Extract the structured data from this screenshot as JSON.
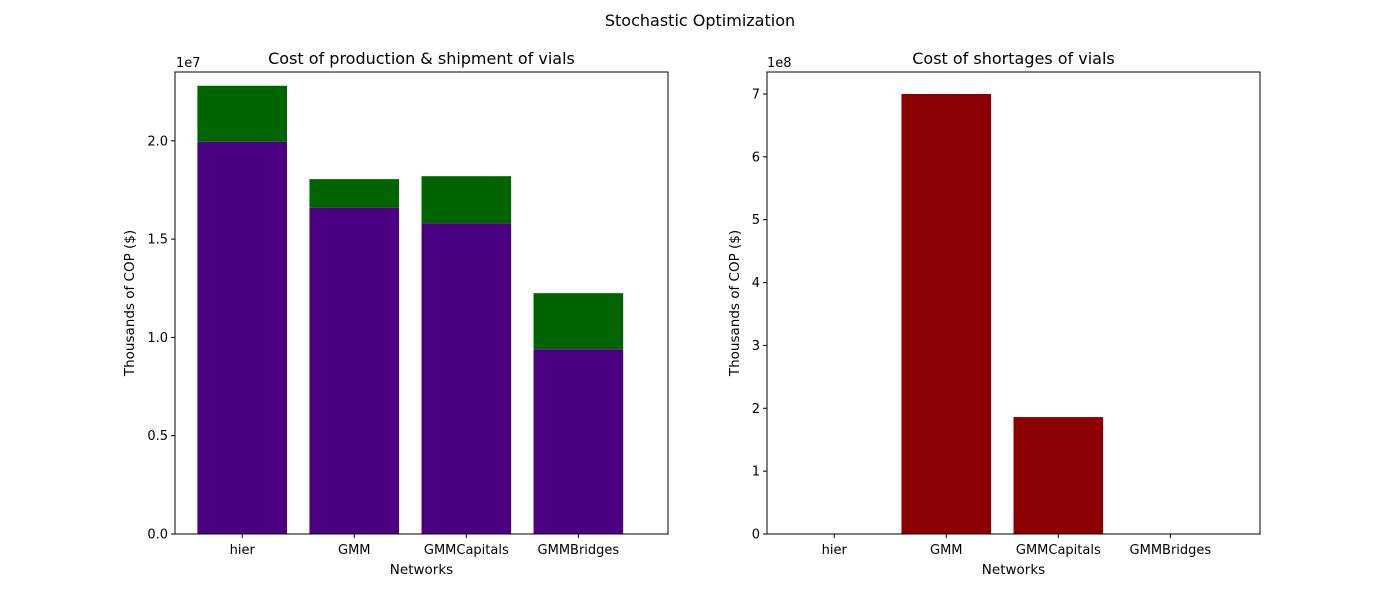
{
  "figure": {
    "suptitle": "Stochastic Optimization"
  },
  "chart_data": [
    {
      "type": "bar",
      "stacked": true,
      "title": "Cost of production & shipment of vials",
      "xlabel": "Networks",
      "ylabel": "Thousands of COP ($)",
      "ylim": [
        0,
        23500000
      ],
      "y_offset_label": "1e7",
      "y_tick_labels": [
        "0.0",
        "0.5",
        "1.0",
        "1.5",
        "2.0"
      ],
      "y_tick_values": [
        0,
        5000000,
        10000000,
        15000000,
        20000000
      ],
      "categories": [
        "hier",
        "GMM",
        "GMMCapitals",
        "GMMBridges"
      ],
      "series": [
        {
          "values": [
            19950000,
            16600000,
            15800000,
            9400000
          ],
          "color": "#4b0082"
        },
        {
          "values": [
            2850000,
            1450000,
            2400000,
            2850000
          ],
          "color": "#006400"
        }
      ],
      "grid": false
    },
    {
      "type": "bar",
      "title": "Cost of shortages of vials",
      "xlabel": "Networks",
      "ylabel": "Thousands of COP ($)",
      "ylim": [
        0,
        735000000
      ],
      "y_offset_label": "1e8",
      "y_tick_labels": [
        "0",
        "1",
        "2",
        "3",
        "4",
        "5",
        "6",
        "7"
      ],
      "y_tick_values": [
        0,
        100000000,
        200000000,
        300000000,
        400000000,
        500000000,
        600000000,
        700000000
      ],
      "categories": [
        "hier",
        "GMM",
        "GMMCapitals",
        "GMMBridges"
      ],
      "values": [
        0,
        700000000,
        186000000,
        0
      ],
      "color": "#8b0000",
      "grid": false
    }
  ]
}
